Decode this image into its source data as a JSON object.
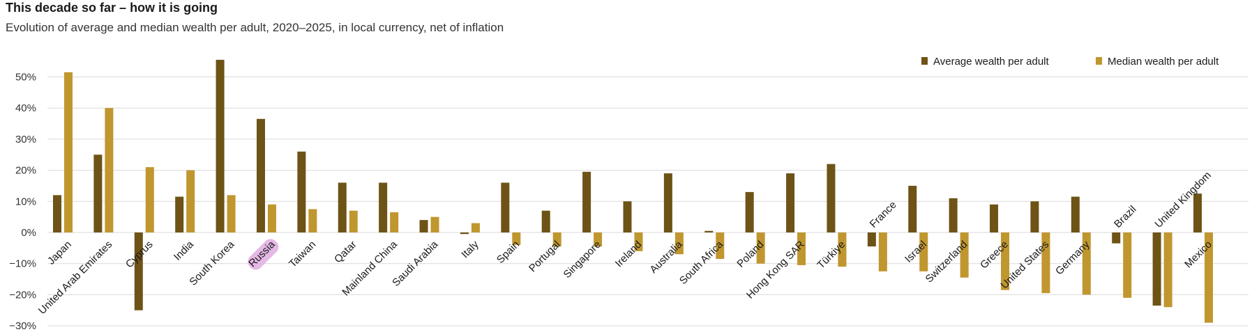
{
  "title": "This decade so far – how it is going",
  "subtitle": "Evolution of average and median wealth per adult, 2020–2025, in local currency, net of inflation",
  "colors": {
    "average": "#6e5317",
    "median": "#c0962f",
    "grid": "#d9d9d9",
    "highlight": "#e6b8e6"
  },
  "chart_data": {
    "type": "bar",
    "ylim": [
      -30,
      55
    ],
    "yticks": [
      "50%",
      "40%",
      "30%",
      "20%",
      "10%",
      "0%",
      "−10%",
      "−20%",
      "−30%"
    ],
    "ytick_values": [
      50,
      40,
      30,
      20,
      10,
      0,
      -10,
      -20,
      -30
    ],
    "legend_position": "top-right",
    "categories": [
      "Japan",
      "United Arab Emirates",
      "Cyprus",
      "India",
      "South Korea",
      "Russia",
      "Taiwan",
      "Qatar",
      "Mainland China",
      "Saudi Arabia",
      "Italy",
      "Spain",
      "Portugal",
      "Singapore",
      "Ireland",
      "Australia",
      "South Africa",
      "Poland",
      "Hong Kong SAR",
      "Türkiye",
      "France",
      "Israel",
      "Switzerland",
      "Greece",
      "United States",
      "Germany",
      "Brazil",
      "United Kingdom",
      "Mexico"
    ],
    "series": [
      {
        "name": "Average wealth per adult",
        "values": [
          12,
          25,
          -25,
          11.5,
          55.5,
          36.5,
          26,
          16,
          16,
          4,
          -0.5,
          16,
          7,
          19.5,
          10,
          19,
          0.5,
          13,
          19,
          22,
          -4.5,
          15,
          11,
          9,
          10,
          11.5,
          -3.5,
          -23.5,
          12.5
        ]
      },
      {
        "name": "Median wealth per adult",
        "values": [
          51.5,
          40,
          21,
          20,
          12,
          9,
          7.5,
          7,
          6.5,
          5,
          3,
          -4,
          -4.5,
          -4.5,
          -6,
          -7,
          -8.5,
          -10,
          -10.5,
          -11,
          -12.5,
          -12.5,
          -14.5,
          -18.5,
          -19.5,
          -20,
          -21,
          -24,
          -29
        ]
      }
    ]
  }
}
